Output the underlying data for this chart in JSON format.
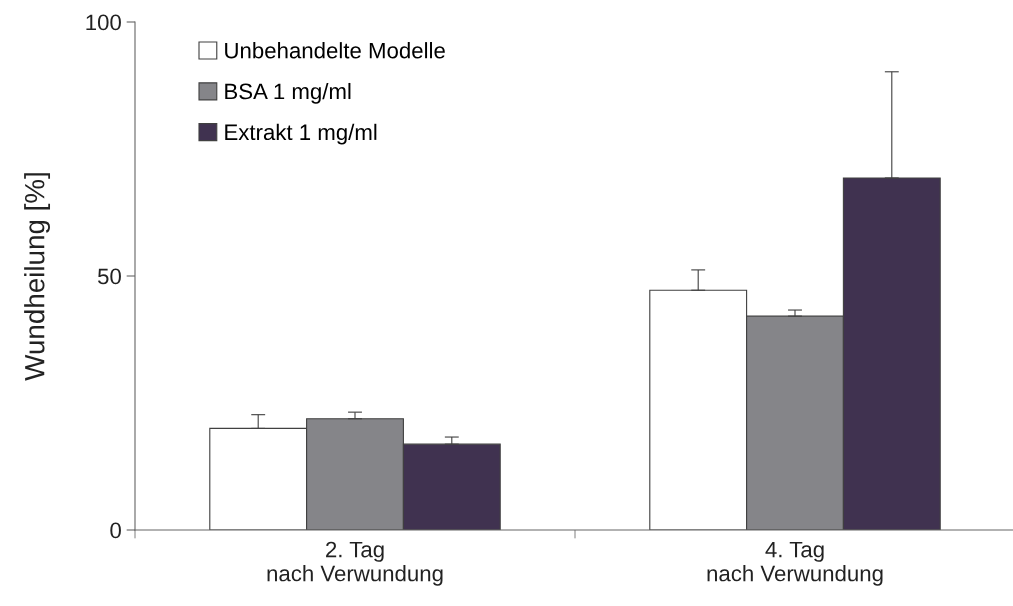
{
  "chart_data": {
    "type": "bar",
    "ylabel": "Wundheilung [%]",
    "categories": [
      "2. Tag\nnach Verwundung",
      "4. Tag\nnach Verwundung"
    ],
    "series": [
      {
        "name": "Unbehandelte Modelle",
        "color": "#ffffff",
        "values": [
          20,
          47.2
        ],
        "errors": [
          [
            20,
            22.7
          ],
          [
            47.2,
            51.2
          ]
        ]
      },
      {
        "name": "BSA 1 mg/ml",
        "color": "#858589",
        "values": [
          21.9,
          42.1
        ],
        "errors": [
          [
            21.9,
            23.2
          ],
          [
            42.1,
            43.3
          ]
        ]
      },
      {
        "name": "Extrakt 1 mg/ml",
        "color": "#403250",
        "values": [
          16.9,
          69.3
        ],
        "errors": [
          [
            16.9,
            18.3
          ],
          [
            69.3,
            90.2
          ]
        ]
      }
    ],
    "ylim": [
      0,
      100
    ],
    "yticks": [
      0,
      50,
      100
    ],
    "legend": "top left",
    "grid": false
  }
}
